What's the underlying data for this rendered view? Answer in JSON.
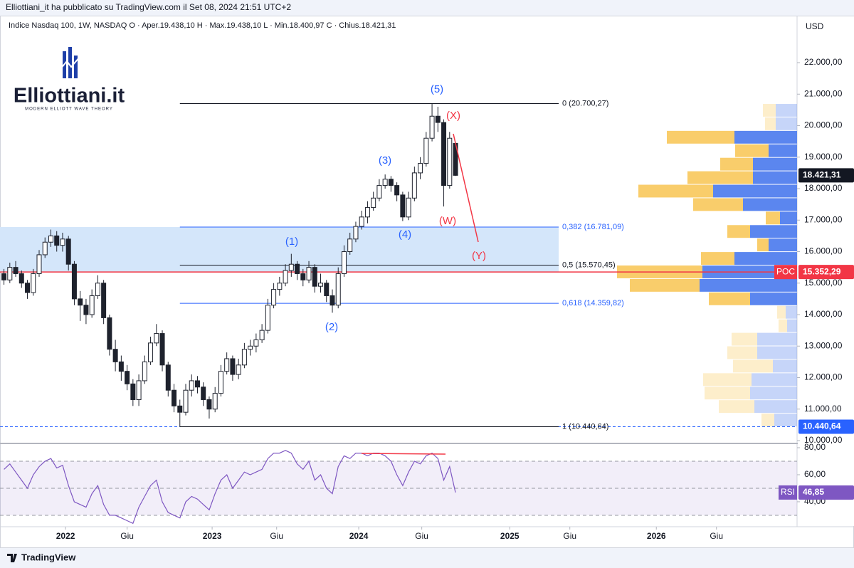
{
  "header": {
    "text": "Elliottiani_it ha pubblicato su TradingView.com il Set 08, 2024 21:51 UTC+2"
  },
  "footer": {
    "brand": "TradingView"
  },
  "logo": {
    "title": "Elliottiani.it",
    "subtitle": "MODERN ELLIOTT WAVE THEORY"
  },
  "waves": [
    "(1)",
    "(2)",
    "(3)",
    "(4)",
    "(5)"
  ],
  "corrective_waves": [
    "(W)",
    "(X)",
    "(Y)"
  ],
  "chart_data": {
    "type": "candlestick",
    "legend": "Indice Nasdaq 100, 1W, NASDAQ  O · Aper.19.438,10  H · Max.19.438,10  L · Min.18.400,97  C · Chius.18.421,31",
    "currency": "USD",
    "candle_color": "#1e222d",
    "xlim": [
      2021.553,
      2026.99
    ],
    "ylim": [
      9955,
      23424
    ],
    "xticks": [
      {
        "value": 2022,
        "label": "2022"
      },
      {
        "value": 2022.42,
        "label": "Giu"
      },
      {
        "value": 2023,
        "label": "2023"
      },
      {
        "value": 2023.44,
        "label": "Giu"
      },
      {
        "value": 2024,
        "label": "2024"
      },
      {
        "value": 2024.43,
        "label": "Giu"
      },
      {
        "value": 2025.03,
        "label": "2025"
      },
      {
        "value": 2025.44,
        "label": "Giu"
      },
      {
        "value": 2026.03,
        "label": "2026"
      },
      {
        "value": 2026.44,
        "label": "Giu"
      }
    ],
    "yticks": [
      {
        "value": 10000,
        "label": "10.000,00"
      },
      {
        "value": 11000,
        "label": "11.000,00"
      },
      {
        "value": 12000,
        "label": "12.000,00"
      },
      {
        "value": 13000,
        "label": "13.000,00"
      },
      {
        "value": 14000,
        "label": "14.000,00"
      },
      {
        "value": 15000,
        "label": "15.000,00"
      },
      {
        "value": 16000,
        "label": "16.000,00"
      },
      {
        "value": 17000,
        "label": "17.000,00"
      },
      {
        "value": 18000,
        "label": "18.000,00"
      },
      {
        "value": 19000,
        "label": "19.000,00"
      },
      {
        "value": 20000,
        "label": "20.000,00"
      },
      {
        "value": 21000,
        "label": "21.000,00"
      },
      {
        "value": 22000,
        "label": "22.000,00"
      }
    ],
    "x": [
      2021.58,
      2021.62,
      2021.66,
      2021.7,
      2021.74,
      2021.78,
      2021.82,
      2021.86,
      2021.9,
      2021.94,
      2021.98,
      2022.02,
      2022.06,
      2022.1,
      2022.14,
      2022.18,
      2022.22,
      2022.26,
      2022.3,
      2022.34,
      2022.38,
      2022.42,
      2022.46,
      2022.5,
      2022.54,
      2022.58,
      2022.62,
      2022.66,
      2022.7,
      2022.74,
      2022.78,
      2022.82,
      2022.86,
      2022.9,
      2022.94,
      2022.98,
      2023.02,
      2023.06,
      2023.1,
      2023.14,
      2023.18,
      2023.22,
      2023.26,
      2023.3,
      2023.34,
      2023.38,
      2023.42,
      2023.46,
      2023.5,
      2023.54,
      2023.58,
      2023.62,
      2023.66,
      2023.7,
      2023.74,
      2023.78,
      2023.82,
      2023.86,
      2023.9,
      2023.94,
      2023.98,
      2024.02,
      2024.06,
      2024.1,
      2024.14,
      2024.18,
      2024.22,
      2024.26,
      2024.3,
      2024.34,
      2024.38,
      2024.42,
      2024.46,
      2024.5,
      2024.54,
      2024.58,
      2024.62,
      2024.66
    ],
    "ohlc": [
      [
        15300,
        15450,
        14950,
        15100
      ],
      [
        15100,
        15650,
        15000,
        15500
      ],
      [
        15500,
        15700,
        15200,
        15300
      ],
      [
        15300,
        15400,
        14850,
        15000
      ],
      [
        15000,
        15100,
        14500,
        14700
      ],
      [
        14700,
        15450,
        14600,
        15300
      ],
      [
        15300,
        16050,
        15200,
        15900
      ],
      [
        15900,
        16450,
        15800,
        16300
      ],
      [
        16300,
        16700,
        16150,
        16500
      ],
      [
        16500,
        16650,
        16000,
        16200
      ],
      [
        16200,
        16600,
        16000,
        16400
      ],
      [
        16400,
        16500,
        15400,
        15600
      ],
      [
        15600,
        15700,
        14300,
        14500
      ],
      [
        14500,
        14750,
        13800,
        14300
      ],
      [
        14300,
        14500,
        13700,
        14000
      ],
      [
        14000,
        14800,
        13900,
        14600
      ],
      [
        14600,
        15250,
        14500,
        15000
      ],
      [
        15000,
        15100,
        13700,
        13900
      ],
      [
        13900,
        14000,
        12700,
        12900
      ],
      [
        12900,
        13200,
        12200,
        12500
      ],
      [
        12500,
        12700,
        11900,
        12200
      ],
      [
        12200,
        12400,
        11600,
        11800
      ],
      [
        11800,
        11950,
        11100,
        11300
      ],
      [
        11300,
        12100,
        11100,
        11900
      ],
      [
        11900,
        12700,
        11800,
        12500
      ],
      [
        12500,
        13300,
        12400,
        13100
      ],
      [
        13100,
        13700,
        13000,
        13400
      ],
      [
        13400,
        13500,
        12200,
        12400
      ],
      [
        12400,
        12500,
        11400,
        11600
      ],
      [
        11600,
        11800,
        10900,
        11100
      ],
      [
        11100,
        11300,
        10440.64,
        10900
      ],
      [
        10900,
        11800,
        10800,
        11600
      ],
      [
        11600,
        12100,
        11400,
        11900
      ],
      [
        11900,
        12050,
        11500,
        11700
      ],
      [
        11700,
        11850,
        11100,
        11300
      ],
      [
        11300,
        11400,
        10700,
        11000
      ],
      [
        11000,
        11700,
        10900,
        11500
      ],
      [
        11500,
        12400,
        11400,
        12200
      ],
      [
        12200,
        12800,
        12100,
        12600
      ],
      [
        12600,
        12700,
        11900,
        12100
      ],
      [
        12100,
        12600,
        11950,
        12400
      ],
      [
        12400,
        13100,
        12300,
        12900
      ],
      [
        12900,
        13200,
        12700,
        13000
      ],
      [
        13000,
        13400,
        12800,
        13200
      ],
      [
        13200,
        13700,
        13100,
        13500
      ],
      [
        13500,
        14500,
        13400,
        14300
      ],
      [
        14300,
        15000,
        14200,
        14800
      ],
      [
        14800,
        15200,
        14600,
        15000
      ],
      [
        15000,
        15600,
        14900,
        15400
      ],
      [
        15400,
        15930,
        15200,
        15600
      ],
      [
        15600,
        15700,
        15100,
        15300
      ],
      [
        15300,
        15450,
        14900,
        15100
      ],
      [
        15100,
        15700,
        15000,
        15500
      ],
      [
        15500,
        15600,
        14700,
        14900
      ],
      [
        14900,
        15300,
        14700,
        15000
      ],
      [
        15000,
        15100,
        14400,
        14600
      ],
      [
        14600,
        14800,
        14060,
        14300
      ],
      [
        14300,
        15500,
        14200,
        15300
      ],
      [
        15300,
        16200,
        15200,
        16000
      ],
      [
        16000,
        16600,
        15900,
        16400
      ],
      [
        16400,
        16950,
        16300,
        16800
      ],
      [
        16800,
        17300,
        16700,
        17100
      ],
      [
        17100,
        17600,
        16900,
        17400
      ],
      [
        17400,
        17900,
        17300,
        17700
      ],
      [
        17700,
        18300,
        17600,
        18100
      ],
      [
        18100,
        18450,
        18000,
        18300
      ],
      [
        18300,
        18400,
        17900,
        18100
      ],
      [
        18100,
        18200,
        17600,
        17800
      ],
      [
        17800,
        17900,
        16970,
        17100
      ],
      [
        17100,
        17900,
        17000,
        17700
      ],
      [
        17700,
        18700,
        17600,
        18500
      ],
      [
        18500,
        19000,
        18300,
        18800
      ],
      [
        18800,
        19800,
        18700,
        19600
      ],
      [
        19600,
        20690,
        19500,
        20300
      ],
      [
        20300,
        20600,
        19800,
        20100
      ],
      [
        20100,
        20200,
        17433,
        18100
      ],
      [
        18100,
        19800,
        18000,
        19600
      ],
      [
        19438.1,
        19438.1,
        18400.97,
        18421.31
      ]
    ],
    "fib_levels": [
      {
        "label": "0 (20.700,27)",
        "value": 20700.27,
        "color": "#131722"
      },
      {
        "label": "0,382 (16.781,09)",
        "value": 16781.09,
        "color": "#2962ff"
      },
      {
        "label": "0,5 (15.570,45)",
        "value": 15570.45,
        "color": "#131722"
      },
      {
        "label": "0,618 (14.359,82)",
        "value": 14359.82,
        "color": "#2962ff"
      },
      {
        "label": "1 (10.440,64)",
        "value": 10440.64,
        "color": "#131722"
      }
    ],
    "zone": {
      "top": 16781.09,
      "bottom": 15352.29,
      "color": "#d4e6fa"
    },
    "price_labels": [
      {
        "value": 18421.31,
        "label": "18.421,31",
        "color": "#131722"
      },
      {
        "value": 15352.29,
        "label": "15.352,29",
        "tag": "POC",
        "color": "#f23645",
        "line": "solid"
      },
      {
        "value": 10440.64,
        "label": "10.440,64",
        "color": "#2962ff",
        "line": "dashed"
      }
    ],
    "volume_profile": {
      "range": [
        10440.64,
        20700.27
      ],
      "up": [
        32,
        60,
        66,
        64,
        34,
        56,
        56,
        14,
        16,
        66,
        137,
        133,
        88,
        40,
        66,
        24,
        76,
        118,
        62,
        62,
        40,
        88,
        30,
        30
      ],
      "down": [
        18,
        50,
        64,
        68,
        56,
        42,
        36,
        12,
        12,
        58,
        98,
        120,
        47,
        16,
        32,
        20,
        70,
        105,
        92,
        46,
        47,
        95,
        15,
        18
      ],
      "value_area": [
        9,
        21
      ],
      "up_color": "#5b86ef",
      "down_color": "#f9cd6b"
    },
    "rsi": {
      "title": "RSI",
      "last_label": "46,85",
      "color": "#7e57c2",
      "ylim": [
        22.6,
        82.1
      ],
      "yticks": [
        {
          "value": 40,
          "label": "40,00"
        },
        {
          "value": 60,
          "label": "60,00"
        },
        {
          "value": 80,
          "label": "80,00"
        }
      ],
      "levels": [
        30,
        50,
        70
      ],
      "values": [
        64,
        68,
        62,
        56,
        50,
        60,
        66,
        70,
        72,
        65,
        67,
        52,
        40,
        38,
        36,
        46,
        52,
        38,
        30,
        30,
        28,
        26,
        24,
        36,
        44,
        52,
        56,
        40,
        32,
        30,
        28,
        40,
        44,
        42,
        38,
        34,
        46,
        56,
        60,
        50,
        56,
        62,
        60,
        62,
        64,
        72,
        76,
        76,
        78,
        76,
        68,
        64,
        70,
        56,
        60,
        50,
        46,
        66,
        74,
        72,
        76,
        76,
        74,
        76,
        76,
        74,
        70,
        60,
        52,
        62,
        70,
        68,
        74,
        76,
        72,
        56,
        66,
        46.85
      ]
    }
  }
}
